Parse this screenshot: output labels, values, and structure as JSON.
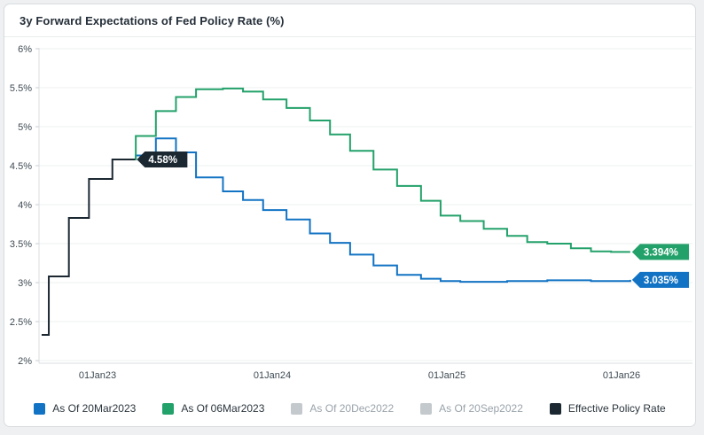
{
  "chart_data": {
    "type": "line",
    "subtype": "step-after",
    "title": "3y Forward Expectations of Fed Policy Rate (%)",
    "x_axis": {
      "note": "t = years since 01Jan2023",
      "t_min": -0.34,
      "t_max": 3.41,
      "ticks": [
        {
          "t": 0,
          "label": "01Jan23"
        },
        {
          "t": 1,
          "label": "01Jan24"
        },
        {
          "t": 2,
          "label": "01Jan25"
        },
        {
          "t": 3,
          "label": "01Jan26"
        }
      ]
    },
    "y_axis": {
      "min": 2,
      "max": 6,
      "tick_step": 0.5,
      "unit": "%",
      "grid": true,
      "tick_labels": [
        "2%",
        "2.5%",
        "3%",
        "3.5%",
        "4%",
        "4.5%",
        "5%",
        "5.5%",
        "6%"
      ]
    },
    "legend_position": "bottom",
    "series": [
      {
        "name": "As Of 20Mar2023",
        "color": "#1273c4",
        "visible": true,
        "end_label": "3.035%",
        "points": [
          [
            0.215,
            4.58
          ],
          [
            0.219,
            4.63
          ],
          [
            0.334,
            4.85
          ],
          [
            0.449,
            4.67
          ],
          [
            0.564,
            4.35
          ],
          [
            0.718,
            4.17
          ],
          [
            0.833,
            4.06
          ],
          [
            0.948,
            3.93
          ],
          [
            1.082,
            3.81
          ],
          [
            1.216,
            3.63
          ],
          [
            1.331,
            3.51
          ],
          [
            1.446,
            3.36
          ],
          [
            1.58,
            3.22
          ],
          [
            1.715,
            3.1
          ],
          [
            1.852,
            3.05
          ],
          [
            1.964,
            3.02
          ],
          [
            2.077,
            3.01
          ],
          [
            2.345,
            3.02
          ],
          [
            2.575,
            3.03
          ],
          [
            2.825,
            3.02
          ],
          [
            3.05,
            3.035
          ]
        ]
      },
      {
        "name": "As Of 06Mar2023",
        "color": "#23a16a",
        "visible": true,
        "end_label": "3.394%",
        "points": [
          [
            0.177,
            4.58
          ],
          [
            0.219,
            4.88
          ],
          [
            0.334,
            5.2
          ],
          [
            0.449,
            5.38
          ],
          [
            0.564,
            5.48
          ],
          [
            0.718,
            5.49
          ],
          [
            0.833,
            5.45
          ],
          [
            0.948,
            5.35
          ],
          [
            1.082,
            5.24
          ],
          [
            1.216,
            5.08
          ],
          [
            1.331,
            4.9
          ],
          [
            1.446,
            4.69
          ],
          [
            1.58,
            4.45
          ],
          [
            1.715,
            4.24
          ],
          [
            1.852,
            4.05
          ],
          [
            1.964,
            3.86
          ],
          [
            2.077,
            3.79
          ],
          [
            2.211,
            3.69
          ],
          [
            2.345,
            3.6
          ],
          [
            2.46,
            3.52
          ],
          [
            2.575,
            3.5
          ],
          [
            2.71,
            3.44
          ],
          [
            2.825,
            3.4
          ],
          [
            2.94,
            3.394
          ],
          [
            3.05,
            3.394
          ]
        ]
      },
      {
        "name": "As Of 20Dec2022",
        "color": "#c3c9cd",
        "visible": false,
        "points": []
      },
      {
        "name": "As Of 20Sep2022",
        "color": "#c3c9cd",
        "visible": false,
        "points": []
      },
      {
        "name": "Effective Policy Rate",
        "color": "#1b2832",
        "visible": true,
        "end_label": "4.58%",
        "points": [
          [
            -0.32,
            2.33
          ],
          [
            -0.279,
            3.08
          ],
          [
            -0.164,
            3.83
          ],
          [
            -0.049,
            4.33
          ],
          [
            0.085,
            4.58
          ],
          [
            0.215,
            4.58
          ]
        ]
      }
    ],
    "style": {
      "badge_text_color": "#ffffff",
      "grid_color": "#edf0f1",
      "axis_color": "#d8dde0",
      "tick_mark_color": "#c9ced1",
      "tick_text_color": "#3f4b54",
      "legend_inactive_text": "#9aa3ab",
      "page_background": "#eef0f1",
      "card_border": "#d8dde0"
    }
  }
}
